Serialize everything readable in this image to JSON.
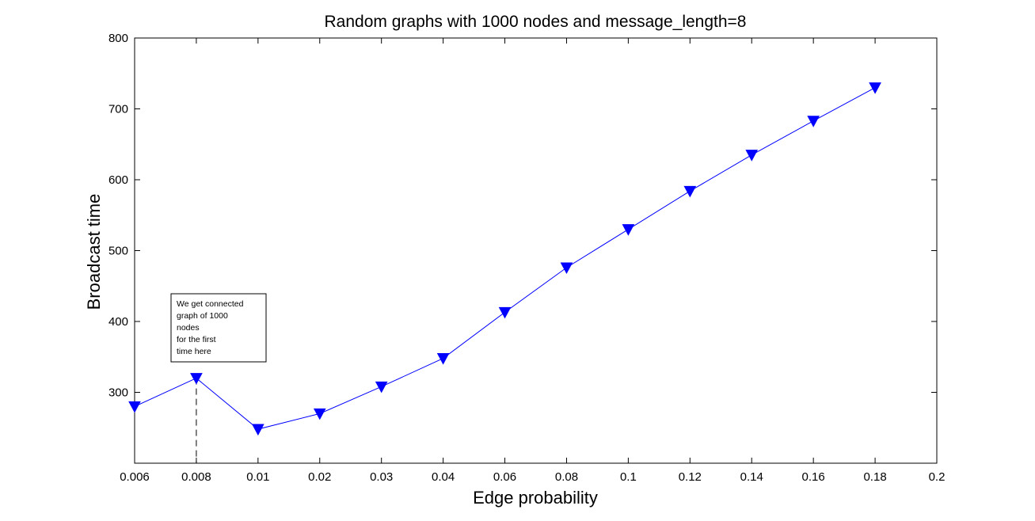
{
  "chart_data": {
    "type": "line",
    "title": "Random graphs with 1000 nodes and message_length=8",
    "xlabel": "Edge probability",
    "ylabel": "Broadcast time",
    "categories": [
      "0.006",
      "0.008",
      "0.01",
      "0.02",
      "0.03",
      "0.04",
      "0.06",
      "0.08",
      "0.1",
      "0.12",
      "0.14",
      "0.16",
      "0.18",
      "0.2"
    ],
    "series": [
      {
        "color": "#0000ff",
        "marker": "triangle-down",
        "x": [
          "0.006",
          "0.008",
          "0.01",
          "0.02",
          "0.03",
          "0.04",
          "0.06",
          "0.08",
          "0.1",
          "0.12",
          "0.14",
          "0.16",
          "0.18"
        ],
        "values": [
          280,
          320,
          248,
          270,
          308,
          348,
          413,
          476,
          530,
          584,
          635,
          683,
          730
        ]
      }
    ],
    "ylim": [
      200,
      800
    ],
    "yticks": [
      300,
      400,
      500,
      600,
      700,
      800
    ],
    "ytick_labels": [
      "300",
      "400",
      "500",
      "600",
      "700",
      "800"
    ],
    "grid": false,
    "annotation": {
      "lines": [
        "We get connected",
        "graph of 1000",
        "nodes",
        "for the first",
        "time here"
      ],
      "target_x": "0.008",
      "target_y": 320
    }
  }
}
